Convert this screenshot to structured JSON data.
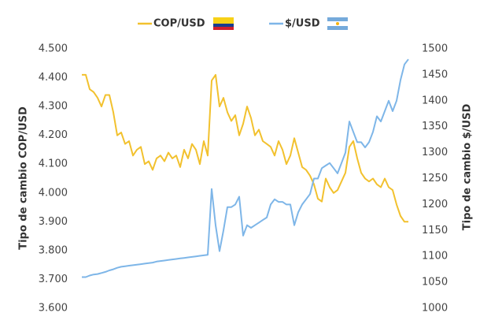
{
  "chart_data": {
    "type": "line",
    "y_label": "Tipo de cambio COP/USD",
    "y2_label": "Tipo de cambio $/USD",
    "ylim": [
      3.6,
      4.5
    ],
    "yticks": [
      {
        "value": 3.6,
        "label": "3.600"
      },
      {
        "value": 3.7,
        "label": "3.700"
      },
      {
        "value": 3.8,
        "label": "3.800"
      },
      {
        "value": 3.9,
        "label": "3.900"
      },
      {
        "value": 4.0,
        "label": "4.000"
      },
      {
        "value": 4.1,
        "label": "4.100"
      },
      {
        "value": 4.2,
        "label": "4.200"
      },
      {
        "value": 4.3,
        "label": "4.300"
      },
      {
        "value": 4.4,
        "label": "4.400"
      },
      {
        "value": 4.5,
        "label": "4.500"
      }
    ],
    "y2lim": [
      1000,
      1500
    ],
    "y2ticks": [
      1000,
      1050,
      1100,
      1150,
      1200,
      1250,
      1300,
      1350,
      1400,
      1450,
      1500
    ],
    "series": [
      {
        "name": "COP/USD",
        "color": "#f2c12e",
        "values": [
          4.41,
          4.41,
          4.36,
          4.35,
          4.33,
          4.3,
          4.34,
          4.34,
          4.28,
          4.2,
          4.21,
          4.17,
          4.18,
          4.13,
          4.15,
          4.16,
          4.1,
          4.11,
          4.08,
          4.12,
          4.13,
          4.11,
          4.14,
          4.12,
          4.13,
          4.09,
          4.15,
          4.12,
          4.17,
          4.15,
          4.1,
          4.18,
          4.13,
          4.39,
          4.41,
          4.3,
          4.33,
          4.28,
          4.25,
          4.27,
          4.2,
          4.24,
          4.3,
          4.26,
          4.2,
          4.22,
          4.18,
          4.17,
          4.16,
          4.13,
          4.18,
          4.15,
          4.1,
          4.13,
          4.19,
          4.14,
          4.09,
          4.08,
          4.06,
          4.03,
          3.98,
          3.97,
          4.05,
          4.02,
          4.0,
          4.01,
          4.04,
          4.07,
          4.16,
          4.18,
          4.12,
          4.07,
          4.05,
          4.04,
          4.05,
          4.03,
          4.02,
          4.05,
          4.02,
          4.01,
          3.96,
          3.92,
          3.9,
          3.9
        ]
      },
      {
        "name": "$/USD",
        "color": "#7eb6e8",
        "axis": "y2",
        "values": [
          1060,
          1060,
          1063,
          1065,
          1066,
          1068,
          1070,
          1073,
          1075,
          1078,
          1080,
          1081,
          1082,
          1083,
          1084,
          1085,
          1086,
          1087,
          1088,
          1090,
          1091,
          1092,
          1093,
          1094,
          1095,
          1096,
          1097,
          1098,
          1099,
          1100,
          1101,
          1102,
          1103,
          1230,
          1160,
          1110,
          1150,
          1195,
          1195,
          1200,
          1215,
          1140,
          1160,
          1155,
          1160,
          1165,
          1170,
          1175,
          1200,
          1210,
          1205,
          1205,
          1200,
          1200,
          1160,
          1185,
          1200,
          1210,
          1220,
          1250,
          1250,
          1270,
          1275,
          1280,
          1270,
          1260,
          1280,
          1300,
          1360,
          1340,
          1320,
          1320,
          1310,
          1320,
          1340,
          1370,
          1360,
          1380,
          1400,
          1380,
          1400,
          1440,
          1470,
          1480
        ]
      }
    ]
  }
}
